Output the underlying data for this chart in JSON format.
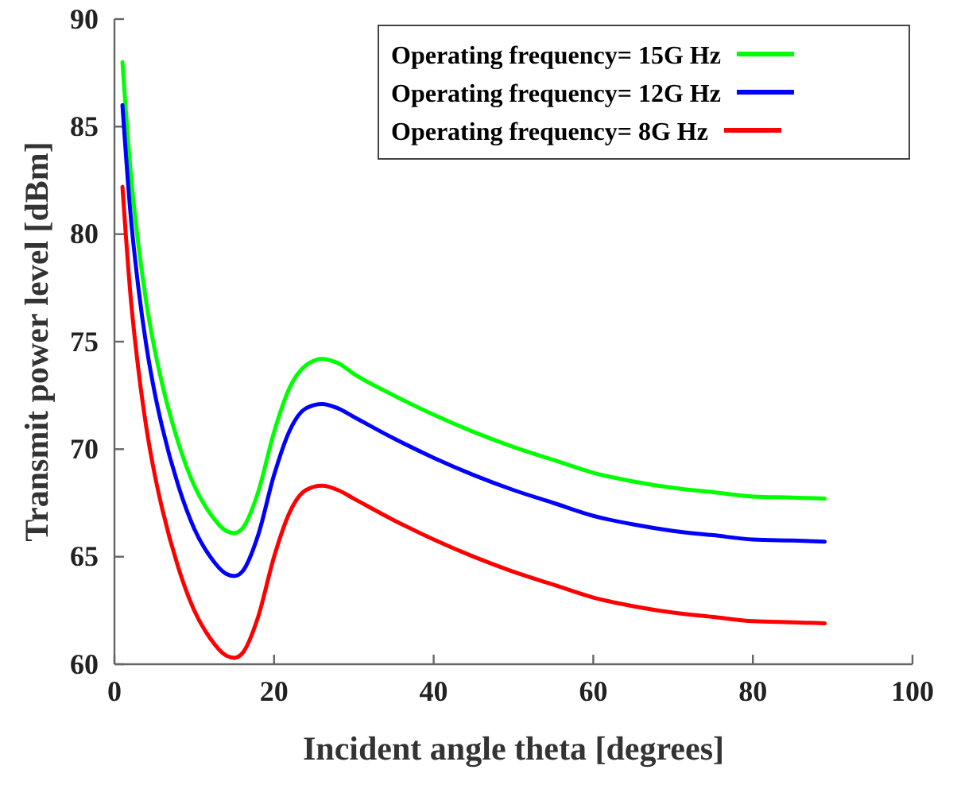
{
  "chart_data": {
    "type": "line",
    "xlabel": "Incident angle theta [degrees]",
    "ylabel": "Transmit power level [dBm]",
    "xlim": [
      0,
      100
    ],
    "xticks": [
      0,
      20,
      40,
      60,
      80,
      100
    ],
    "ylim": [
      60,
      90
    ],
    "yticks": [
      60,
      65,
      70,
      75,
      80,
      85,
      90
    ],
    "grid": false,
    "legend": "top right",
    "line_style": "solid",
    "marker": "none",
    "x": [
      1,
      2,
      3,
      4,
      5,
      6,
      8,
      10,
      12,
      14,
      15,
      16,
      18,
      20,
      22,
      24,
      26,
      28,
      30,
      35,
      40,
      45,
      50,
      55,
      60,
      65,
      70,
      75,
      80,
      85,
      89
    ],
    "series": [
      {
        "name": "Operating frequency= 15G Hz",
        "color": "#00ff00",
        "values": [
          88.0,
          83.0,
          79.5,
          76.8,
          74.7,
          73.0,
          70.3,
          68.3,
          67.0,
          66.2,
          66.1,
          66.3,
          68.0,
          70.8,
          72.9,
          73.9,
          74.2,
          74.0,
          73.5,
          72.5,
          71.6,
          70.8,
          70.1,
          69.5,
          68.9,
          68.5,
          68.2,
          68.0,
          67.8,
          67.75,
          67.7
        ]
      },
      {
        "name": "Operating frequency= 12G Hz",
        "color": "#0000ff",
        "values": [
          86.0,
          81.0,
          77.5,
          74.8,
          72.7,
          71.0,
          68.3,
          66.3,
          65.0,
          64.2,
          64.1,
          64.3,
          66.0,
          68.8,
          70.9,
          71.9,
          72.1,
          71.9,
          71.5,
          70.5,
          69.6,
          68.8,
          68.1,
          67.5,
          66.9,
          66.5,
          66.2,
          66.0,
          65.8,
          65.75,
          65.7
        ]
      },
      {
        "name": "Operating frequency= 8G Hz",
        "color": "#ff0000",
        "values": [
          82.2,
          77.2,
          73.7,
          71.0,
          68.9,
          67.2,
          64.5,
          62.5,
          61.2,
          60.4,
          60.3,
          60.5,
          62.2,
          65.0,
          67.1,
          68.1,
          68.3,
          68.1,
          67.7,
          66.7,
          65.8,
          65.0,
          64.3,
          63.7,
          63.1,
          62.7,
          62.4,
          62.2,
          62.0,
          61.95,
          61.9
        ]
      }
    ]
  }
}
